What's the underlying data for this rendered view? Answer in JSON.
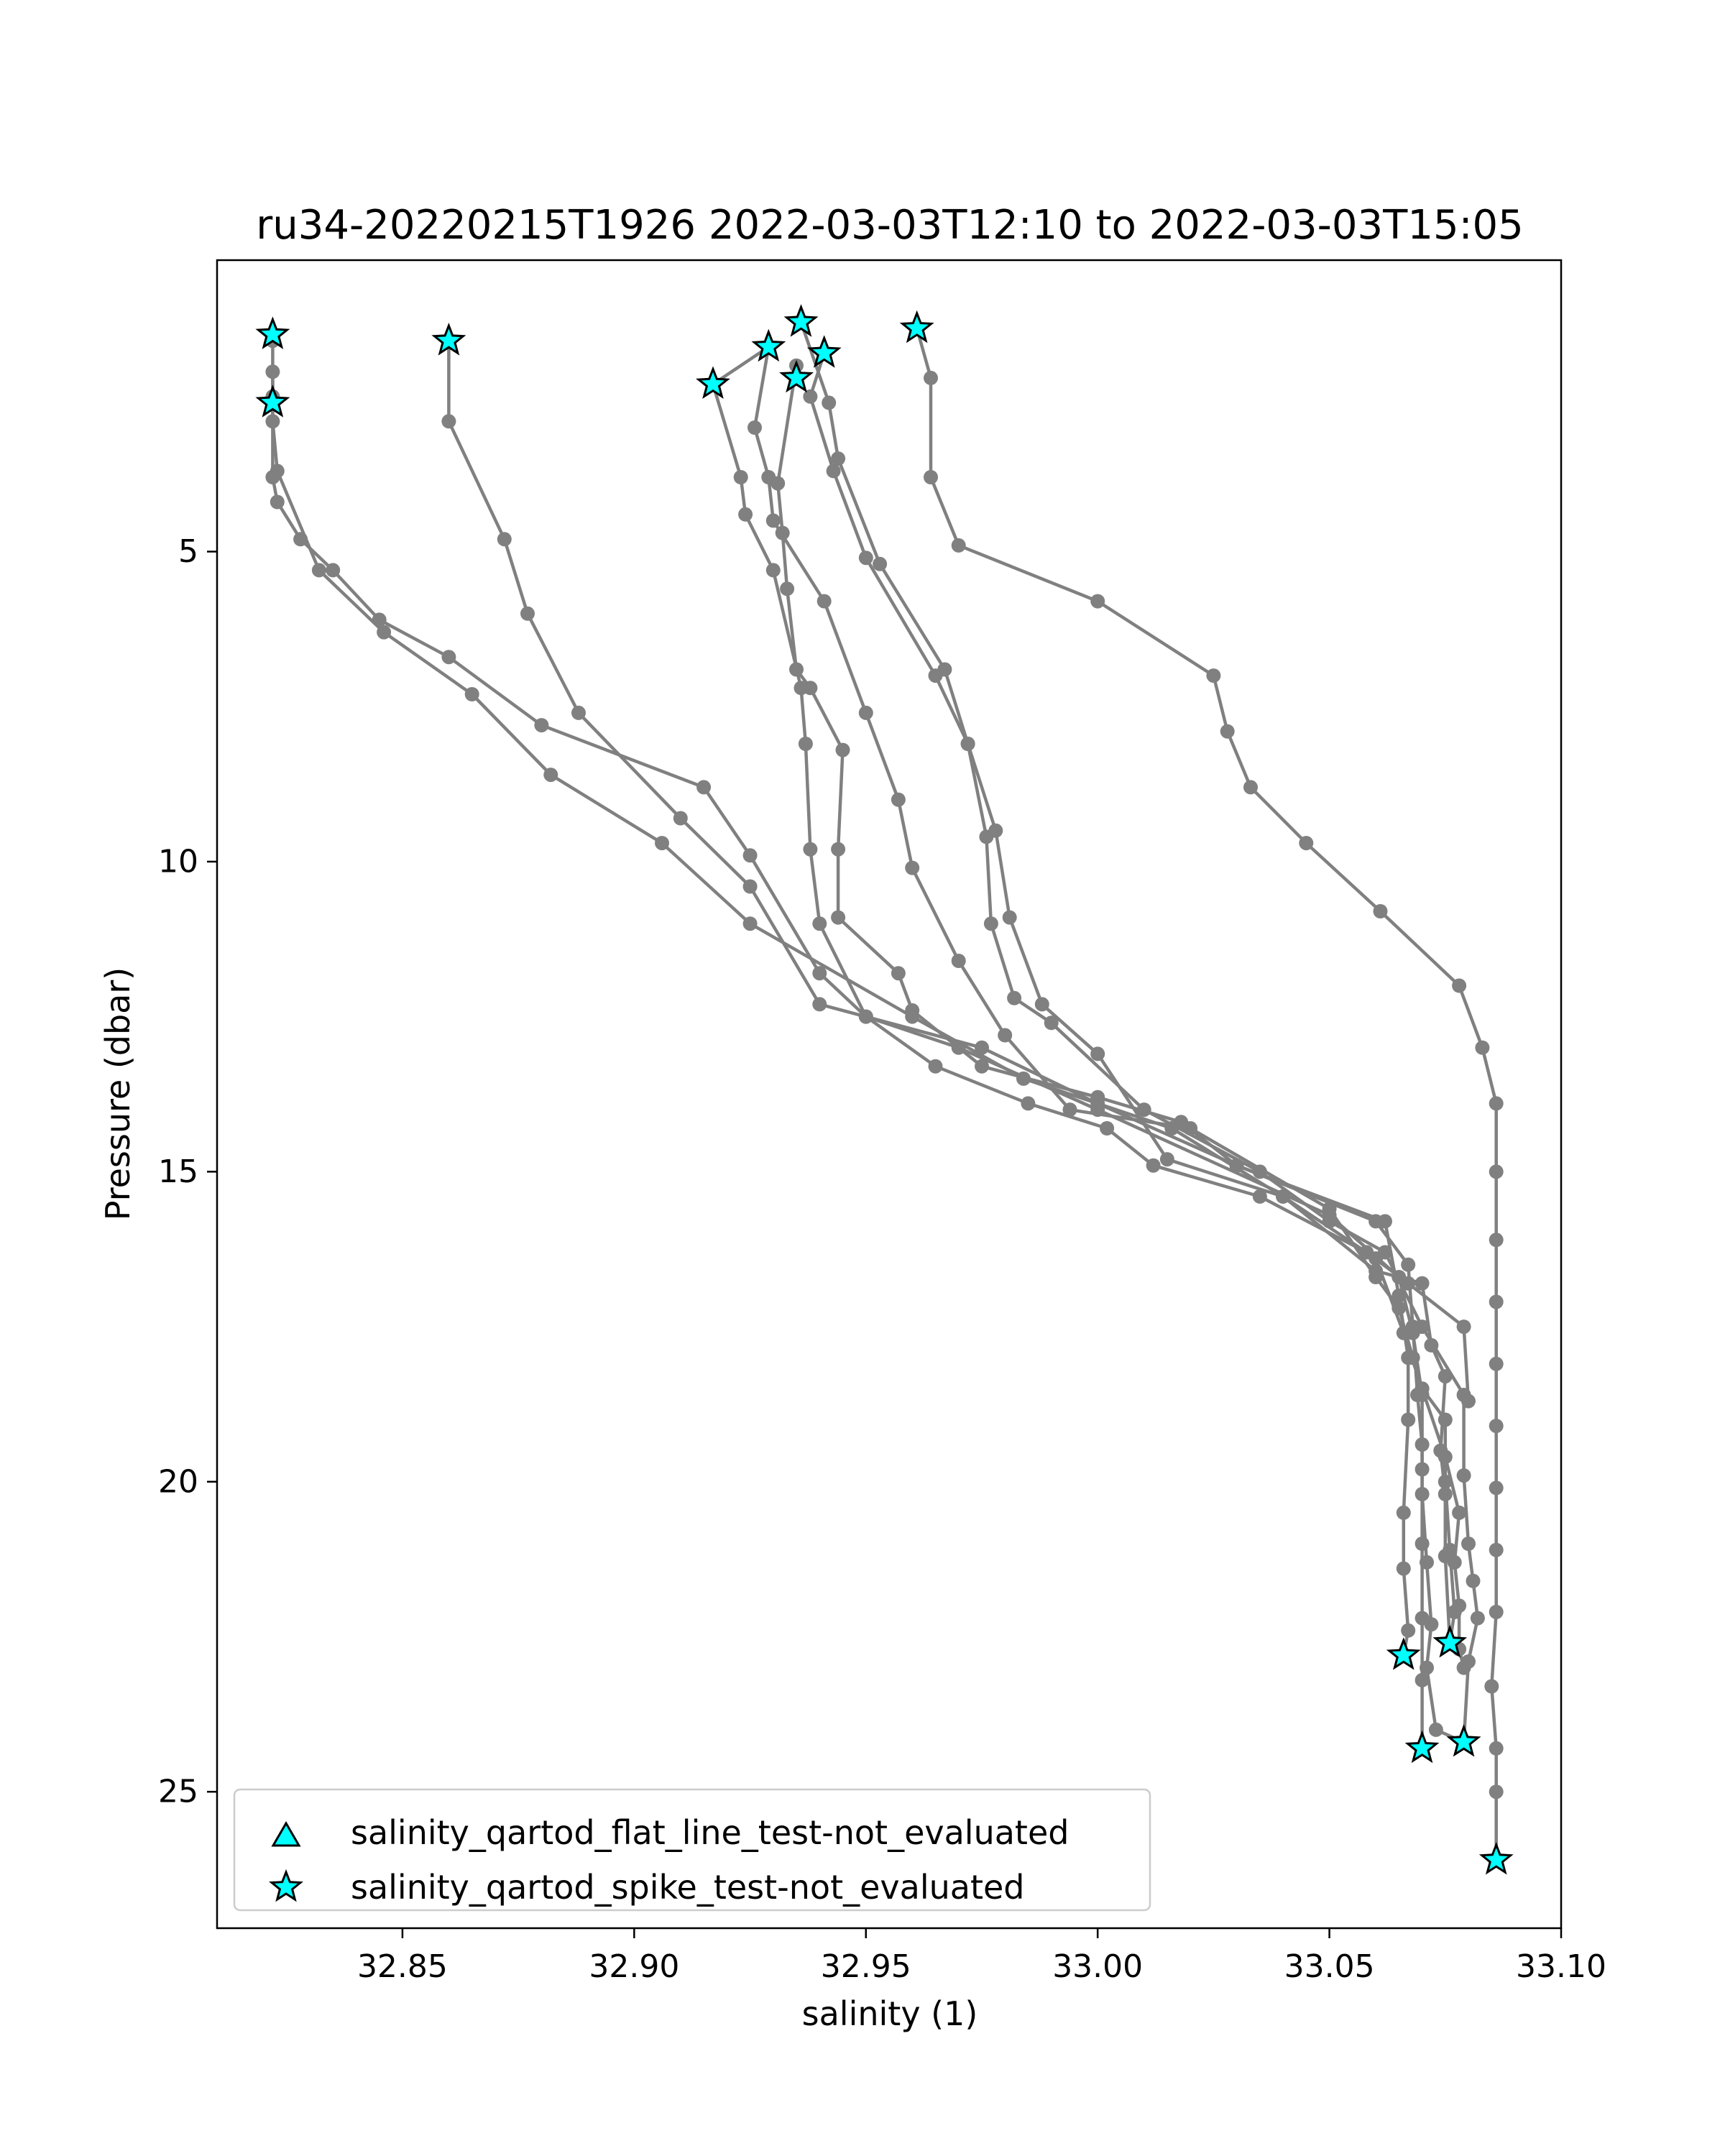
{
  "chart_data": {
    "type": "line",
    "title": "ru34-20220215T1926 2022-03-03T12:10 to 2022-03-03T15:05",
    "xlabel": "salinity (1)",
    "ylabel": "Pressure (dbar)",
    "xlim": [
      32.81,
      33.1
    ],
    "ylim": [
      27.2,
      0.3
    ],
    "y_inverted": true,
    "grid": false,
    "x_ticks": [
      32.85,
      32.9,
      32.95,
      33.0,
      33.05,
      33.1
    ],
    "x_tick_labels": [
      "32.85",
      "32.90",
      "32.95",
      "33.00",
      "33.05",
      "33.10"
    ],
    "y_ticks": [
      5,
      10,
      15,
      20,
      25
    ],
    "y_tick_labels": [
      "5",
      "10",
      "15",
      "20",
      "25"
    ],
    "line_color": "#808080",
    "marker_color": "#00ffff",
    "legend_position": "lower-left",
    "legend": [
      {
        "label": "salinity_qartod_flat_line_test-not_evaluated",
        "marker": "triangle"
      },
      {
        "label": "salinity_qartod_spike_test-not_evaluated",
        "marker": "star"
      }
    ],
    "series": [
      {
        "points": [
          [
            32.822,
            2.1
          ],
          [
            32.822,
            3.8
          ],
          [
            32.823,
            4.2
          ],
          [
            32.828,
            4.8
          ],
          [
            32.835,
            5.3
          ],
          [
            32.845,
            6.1
          ],
          [
            32.86,
            6.7
          ],
          [
            32.88,
            7.8
          ],
          [
            32.915,
            8.8
          ],
          [
            32.925,
            9.9
          ],
          [
            32.94,
            11.8
          ],
          [
            32.95,
            12.5
          ],
          [
            32.97,
            13.0
          ],
          [
            33.0,
            14.0
          ],
          [
            33.05,
            15.7
          ],
          [
            33.065,
            16.7
          ],
          [
            33.068,
            17.6
          ],
          [
            33.07,
            18.6
          ],
          [
            33.07,
            19.8
          ],
          [
            33.07,
            21.0
          ],
          [
            33.07,
            22.2
          ],
          [
            33.07,
            23.2
          ],
          [
            33.07,
            24.3
          ]
        ]
      },
      {
        "points": [
          [
            32.86,
            1.6
          ],
          [
            32.86,
            2.9
          ],
          [
            32.872,
            4.8
          ],
          [
            32.877,
            6.0
          ],
          [
            32.888,
            7.6
          ],
          [
            32.91,
            9.3
          ],
          [
            32.925,
            10.4
          ],
          [
            32.94,
            12.3
          ],
          [
            32.975,
            13.0
          ],
          [
            33.0,
            13.9
          ],
          [
            33.03,
            14.9
          ],
          [
            33.062,
            15.8
          ],
          [
            33.065,
            17.0
          ],
          [
            33.067,
            18.0
          ],
          [
            33.067,
            19.0
          ],
          [
            33.066,
            20.5
          ],
          [
            33.066,
            21.4
          ],
          [
            33.067,
            22.4
          ],
          [
            33.066,
            22.8
          ]
        ]
      },
      {
        "points": [
          [
            32.822,
            1.6
          ],
          [
            32.822,
            2.5
          ],
          [
            32.822,
            2.9
          ],
          [
            32.823,
            3.7
          ],
          [
            32.832,
            5.3
          ],
          [
            32.846,
            6.3
          ],
          [
            32.865,
            7.3
          ],
          [
            32.882,
            8.6
          ],
          [
            32.906,
            9.7
          ],
          [
            32.925,
            11.0
          ],
          [
            32.96,
            12.5
          ],
          [
            32.984,
            13.5
          ],
          [
            33.016,
            14.3
          ],
          [
            33.04,
            15.4
          ],
          [
            33.06,
            16.6
          ],
          [
            33.07,
            16.8
          ],
          [
            33.072,
            17.8
          ],
          [
            33.075,
            18.3
          ],
          [
            33.074,
            19.5
          ],
          [
            33.075,
            20.2
          ],
          [
            33.075,
            21.2
          ],
          [
            33.076,
            22.6
          ]
        ]
      },
      {
        "points": [
          [
            32.917,
            2.3
          ],
          [
            32.929,
            1.7
          ],
          [
            32.926,
            3.0
          ],
          [
            32.929,
            3.8
          ],
          [
            32.93,
            4.5
          ],
          [
            32.941,
            5.8
          ],
          [
            32.95,
            7.6
          ],
          [
            32.957,
            9.0
          ],
          [
            32.96,
            10.1
          ],
          [
            32.97,
            11.6
          ],
          [
            32.98,
            12.8
          ],
          [
            32.994,
            14.0
          ],
          [
            33.02,
            14.3
          ],
          [
            33.05,
            15.6
          ],
          [
            33.06,
            16.7
          ],
          [
            33.065,
            17.2
          ],
          [
            33.068,
            18.0
          ],
          [
            33.07,
            18.5
          ],
          [
            33.075,
            19.0
          ],
          [
            33.075,
            20.0
          ],
          [
            33.076,
            21.1
          ],
          [
            33.077,
            22.1
          ],
          [
            33.076,
            22.6
          ]
        ]
      },
      {
        "points": [
          [
            32.935,
            2.0
          ],
          [
            32.931,
            3.9
          ],
          [
            32.932,
            4.7
          ],
          [
            32.933,
            5.6
          ],
          [
            32.935,
            6.9
          ],
          [
            32.938,
            7.2
          ],
          [
            32.945,
            8.2
          ],
          [
            32.944,
            9.8
          ],
          [
            32.944,
            10.9
          ],
          [
            32.957,
            11.8
          ],
          [
            32.96,
            12.4
          ],
          [
            32.975,
            13.3
          ],
          [
            33.0,
            13.8
          ],
          [
            33.018,
            14.2
          ],
          [
            33.03,
            14.9
          ],
          [
            33.06,
            15.8
          ],
          [
            33.067,
            16.5
          ],
          [
            33.068,
            17.5
          ],
          [
            33.069,
            18.6
          ],
          [
            33.07,
            19.4
          ],
          [
            33.07,
            20.2
          ],
          [
            33.071,
            21.3
          ],
          [
            33.072,
            22.3
          ],
          [
            33.071,
            23.0
          ],
          [
            33.073,
            24.0
          ],
          [
            33.079,
            24.2
          ]
        ]
      },
      {
        "points": [
          [
            32.941,
            1.8
          ],
          [
            32.938,
            2.5
          ],
          [
            32.943,
            3.7
          ],
          [
            32.95,
            5.1
          ],
          [
            32.965,
            7.0
          ],
          [
            32.972,
            8.1
          ],
          [
            32.976,
            9.6
          ],
          [
            32.977,
            11.0
          ],
          [
            32.982,
            12.2
          ],
          [
            32.99,
            12.6
          ],
          [
            33.01,
            14.0
          ],
          [
            33.035,
            15.0
          ],
          [
            33.05,
            15.8
          ],
          [
            33.062,
            16.3
          ],
          [
            33.07,
            17.5
          ],
          [
            33.079,
            18.6
          ],
          [
            33.079,
            19.9
          ],
          [
            33.08,
            21.0
          ],
          [
            33.081,
            21.6
          ],
          [
            33.082,
            22.2
          ],
          [
            33.08,
            22.9
          ],
          [
            33.079,
            24.2
          ]
        ]
      },
      {
        "points": [
          [
            32.936,
            1.3
          ],
          [
            32.942,
            2.6
          ],
          [
            32.944,
            3.5
          ],
          [
            32.953,
            5.2
          ],
          [
            32.967,
            6.9
          ],
          [
            32.972,
            8.1
          ],
          [
            32.978,
            9.5
          ],
          [
            32.981,
            10.9
          ],
          [
            32.988,
            12.3
          ],
          [
            33.0,
            13.1
          ],
          [
            33.015,
            14.8
          ],
          [
            33.04,
            15.4
          ],
          [
            33.06,
            16.4
          ],
          [
            33.066,
            17.6
          ],
          [
            33.07,
            18.5
          ],
          [
            33.075,
            19.6
          ],
          [
            33.078,
            20.5
          ],
          [
            33.077,
            21.3
          ],
          [
            33.078,
            22.0
          ],
          [
            33.078,
            22.7
          ],
          [
            33.079,
            23.0
          ]
        ]
      },
      {
        "points": [
          [
            32.961,
            1.4
          ],
          [
            32.964,
            2.2
          ],
          [
            32.964,
            3.8
          ],
          [
            32.97,
            4.9
          ],
          [
            33.0,
            5.8
          ],
          [
            33.025,
            7.0
          ],
          [
            33.028,
            7.9
          ],
          [
            33.033,
            8.8
          ],
          [
            33.045,
            9.7
          ],
          [
            33.061,
            10.8
          ],
          [
            33.078,
            12.0
          ],
          [
            33.083,
            13.0
          ],
          [
            33.086,
            13.9
          ],
          [
            33.086,
            15.0
          ],
          [
            33.086,
            16.1
          ],
          [
            33.086,
            17.1
          ],
          [
            33.086,
            18.1
          ],
          [
            33.086,
            19.1
          ],
          [
            33.086,
            20.1
          ],
          [
            33.086,
            21.1
          ],
          [
            33.086,
            22.1
          ],
          [
            33.085,
            23.3
          ],
          [
            33.086,
            24.3
          ],
          [
            33.086,
            25.0
          ],
          [
            33.086,
            26.1
          ]
        ]
      },
      {
        "points": [
          [
            32.917,
            2.3
          ],
          [
            32.923,
            3.8
          ],
          [
            32.924,
            4.4
          ],
          [
            32.93,
            5.3
          ],
          [
            32.936,
            7.2
          ],
          [
            32.937,
            8.1
          ],
          [
            32.938,
            9.8
          ],
          [
            32.94,
            11.0
          ],
          [
            32.95,
            12.5
          ],
          [
            32.965,
            13.3
          ],
          [
            32.985,
            13.9
          ],
          [
            33.002,
            14.3
          ],
          [
            33.012,
            14.9
          ],
          [
            33.035,
            15.4
          ],
          [
            33.058,
            16.3
          ],
          [
            33.067,
            16.8
          ],
          [
            33.079,
            17.5
          ],
          [
            33.08,
            18.7
          ]
        ]
      }
    ],
    "spike_markers": [
      [
        32.822,
        1.5
      ],
      [
        32.822,
        2.6
      ],
      [
        32.86,
        1.6
      ],
      [
        32.917,
        2.3
      ],
      [
        32.929,
        1.7
      ],
      [
        32.935,
        2.2
      ],
      [
        32.936,
        1.3
      ],
      [
        32.941,
        1.8
      ],
      [
        32.961,
        1.4
      ],
      [
        33.066,
        22.8
      ],
      [
        33.076,
        22.6
      ],
      [
        33.07,
        24.3
      ],
      [
        33.079,
        24.2
      ],
      [
        33.086,
        26.1
      ]
    ]
  }
}
